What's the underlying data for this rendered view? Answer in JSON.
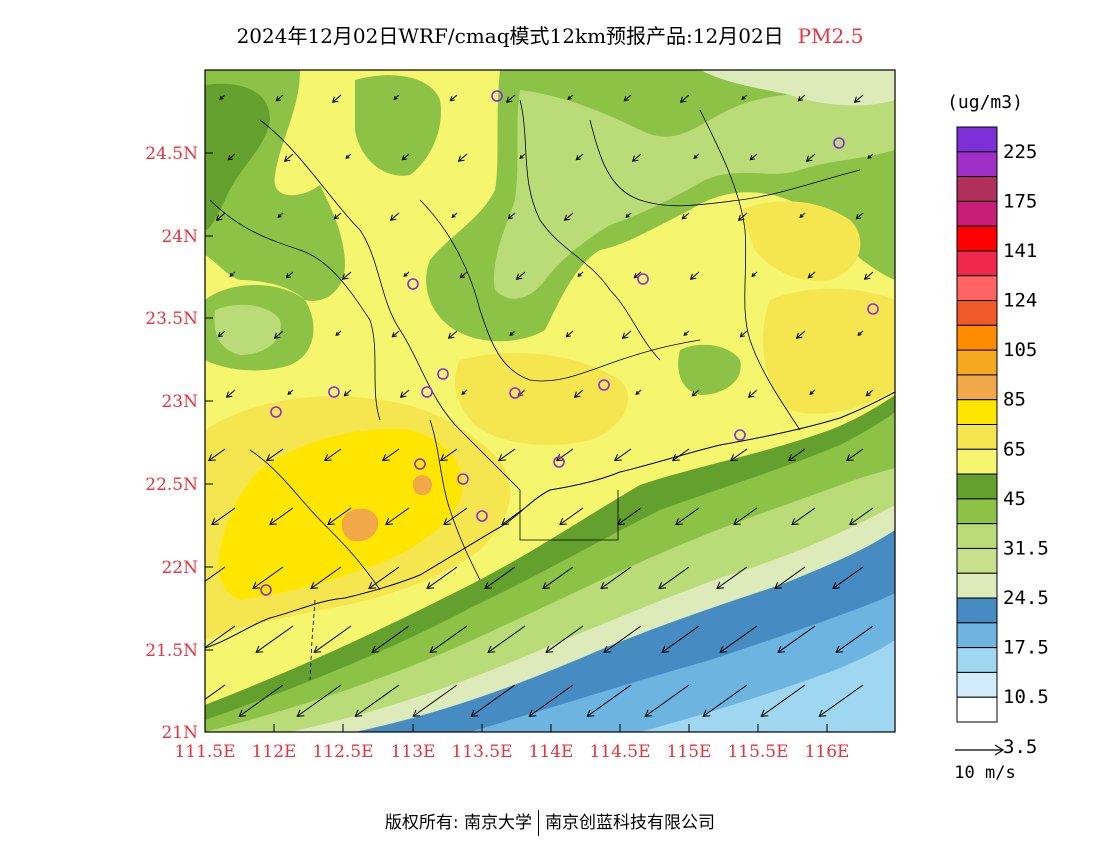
{
  "header": {
    "title": "2024年12月02日WRF/cmaq模式12km预报产品:12月02日",
    "variable": "PM2.5"
  },
  "map": {
    "x_ticks": [
      "111.5E",
      "112E",
      "112.5E",
      "113E",
      "113.5E",
      "114E",
      "114.5E",
      "115E",
      "115.5E",
      "116E"
    ],
    "y_ticks": [
      "24.5N",
      "24N",
      "23.5N",
      "23N",
      "22.5N",
      "22N",
      "21.5N",
      "21N"
    ]
  },
  "legend": {
    "unit": "(ug/m3)",
    "labels": [
      "225",
      "175",
      "141",
      "124",
      "105",
      "85",
      "65",
      "45",
      "31.5",
      "24.5",
      "17.5",
      "10.5",
      "3.5"
    ],
    "colors_top_to_bottom": [
      "#7d2fd8",
      "#a02fc8",
      "#b0305c",
      "#c81e78",
      "#ff0000",
      "#f0284a",
      "#ff6464",
      "#f05a28",
      "#ff8c00",
      "#f5a820",
      "#f0a848",
      "#ffe600",
      "#f5e650",
      "#f5f56e",
      "#64a02d",
      "#8cc346",
      "#b9dc78",
      "#c8e08c",
      "#dcebb9",
      "#468cc3",
      "#6eb4e1",
      "#a0d7f0",
      "#d2ecfa",
      "#ffffff"
    ],
    "wind_label": "10 m/s"
  },
  "footer": {
    "copyright": "版权所有: 南京大学",
    "company": "南京创蓝科技有限公司"
  },
  "colors": {
    "label_red": "#e8323c",
    "pale_yellow": "#f5f56e",
    "yellow": "#ffe600",
    "green_light": "#b9dc78",
    "green_mid": "#8cc346",
    "green_dark": "#64a02d",
    "blue_dark": "#468cc3",
    "blue_mid": "#6eb4e1",
    "blue_light": "#a0d7f0"
  }
}
